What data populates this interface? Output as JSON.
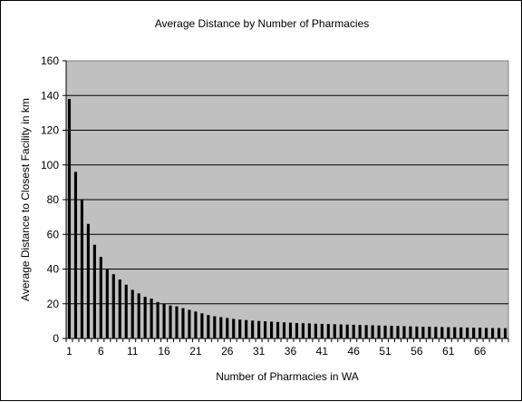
{
  "chart_data": {
    "type": "bar",
    "title": "Average Distance by Number of Pharmacies",
    "xlabel": "Number of Pharmacies in WA",
    "ylabel": "Average Distance to Closest Facility in km",
    "ylim": [
      0,
      160
    ],
    "yticks": [
      0,
      20,
      40,
      60,
      80,
      100,
      120,
      140,
      160
    ],
    "xtick_labels": [
      "1",
      "6",
      "11",
      "16",
      "21",
      "26",
      "31",
      "36",
      "41",
      "46",
      "51",
      "56",
      "61",
      "66"
    ],
    "grid": true,
    "legend": "none",
    "categories": [
      "1",
      "2",
      "3",
      "4",
      "5",
      "6",
      "7",
      "8",
      "9",
      "10",
      "11",
      "12",
      "13",
      "14",
      "15",
      "16",
      "17",
      "18",
      "19",
      "20",
      "21",
      "22",
      "23",
      "24",
      "25",
      "26",
      "27",
      "28",
      "29",
      "30",
      "31",
      "32",
      "33",
      "34",
      "35",
      "36",
      "37",
      "38",
      "39",
      "40",
      "41",
      "42",
      "43",
      "44",
      "45",
      "46",
      "47",
      "48",
      "49",
      "50",
      "51",
      "52",
      "53",
      "54",
      "55",
      "56",
      "57",
      "58",
      "59",
      "60",
      "61",
      "62",
      "63",
      "64",
      "65",
      "66",
      "67",
      "68",
      "69",
      "70"
    ],
    "values": [
      138,
      96,
      80,
      66,
      54,
      47,
      40,
      37,
      34,
      31,
      28,
      26,
      24,
      23,
      21,
      20,
      19,
      18.5,
      17.5,
      16.5,
      15.5,
      14.5,
      13.5,
      12.8,
      12.3,
      11.8,
      11.3,
      10.9,
      10.6,
      10.3,
      10.1,
      9.9,
      9.7,
      9.5,
      9.3,
      9.1,
      8.9,
      8.8,
      8.7,
      8.5,
      8.4,
      8.3,
      8.2,
      8.1,
      8.0,
      7.9,
      7.8,
      7.7,
      7.6,
      7.5,
      7.4,
      7.3,
      7.2,
      7.1,
      7.0,
      6.9,
      6.8,
      6.8,
      6.7,
      6.6,
      6.5,
      6.5,
      6.4,
      6.3,
      6.2,
      6.2,
      6.1,
      6.0,
      6.0,
      5.9
    ],
    "colors": {
      "plot_background": "#c0c0c0",
      "bar": "#000000",
      "gridline": "#000000"
    }
  }
}
